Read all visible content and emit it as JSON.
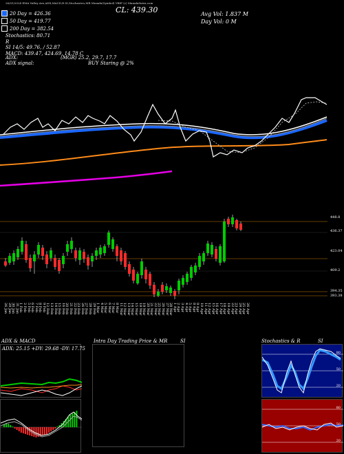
{
  "header": {
    "top_tiny": "26/01/2024  EMA Valley Ave,ADX,MACD,R     SI,Stochastics,MR          Munafa(Symbol) VBIF          (c) MunafaSutra.com",
    "cl": "CL: 439.30",
    "avg_vol": "Avg Vol: 1.837 M",
    "day_vol": "Day Vol: 0   M"
  },
  "legend": [
    {
      "label": "20  Day = 426.36",
      "color": "#1a66ff"
    },
    {
      "label": "50  Day = 419.77",
      "color": "#ffffff"
    },
    {
      "label": "200  Day = 382.54",
      "color": "#ff8c1a"
    }
  ],
  "indicators": {
    "stochastics": "Stochastics: 80.71",
    "r": "R",
    "rsi": "SI 14/5: 49.76,  / 52.87",
    "macd": "MACD: 439.47,  424.69,  14.78  C",
    "adx": "ADX:",
    "mgr": "(MGR) 25.2,  29.7,  17.7",
    "adx_signal": "ADX  signal:",
    "buy": "BUY Staring @ 2%"
  },
  "price_labels": [
    "448.8",
    "436.37",
    "423.04",
    "409.2",
    "394.35",
    "393.38"
  ],
  "dates": [
    "26 Jan",
    "29 Jan",
    "30 Jan",
    "31 Jan",
    "1 Feb",
    "2 Feb",
    "5 Feb",
    "6 Feb",
    "7 Feb",
    "8 Feb",
    "9 Feb",
    "12 Feb",
    "13 Feb",
    "14 Feb",
    "15 Feb",
    "16 Feb",
    "20 Feb",
    "21 Feb",
    "22 Feb",
    "23 Feb",
    "26 Feb",
    "27 Feb",
    "28 Feb",
    "29 Feb",
    "1 Mar",
    "4 Mar",
    "5 Mar",
    "6 Mar",
    "7 Mar",
    "8 Mar",
    "11 Mar",
    "12 Mar",
    "13 Mar",
    "14 Mar",
    "15 Mar",
    "18 Mar",
    "19 Mar",
    "20 Mar",
    "21 Mar",
    "22 Mar",
    "25 Mar",
    "26 Mar",
    "27 Mar",
    "28 Mar",
    "1 Apr",
    "2 Apr",
    "3 Apr",
    "4 Apr",
    "5 Apr",
    "8 Apr",
    "9 Apr",
    "10 Apr",
    "11 Apr",
    "12 Apr",
    "15 Apr",
    "16 Apr",
    "17 Apr",
    "18 Apr",
    "19 Apr",
    "22 Apr",
    "23 Apr",
    "24 Apr",
    "25 Apr",
    "26 Apr"
  ],
  "panels": {
    "adx_macd_title": "ADX  & MACD",
    "adx_readout": "ADX: 25.15  +DY: 29.68  -DY: 17.75",
    "intraday_title": "Intra  Day Trading Price  & MR",
    "intraday_si": "SI",
    "stoch_title": "Stochastics & R",
    "stoch_si": "SI",
    "stoch_levels": [
      "80",
      "50",
      "20"
    ],
    "rsi_levels": [
      "80",
      "50",
      "20"
    ]
  },
  "colors": {
    "ema20": "#1a66ff",
    "ema50": "#ffffff",
    "ema200": "#ff8c1a",
    "ema_long": "#e600e6",
    "up": "#00cc00",
    "down": "#ff2a2a",
    "stoch_bg": "#000f80",
    "rsi_bg": "#990000"
  }
}
